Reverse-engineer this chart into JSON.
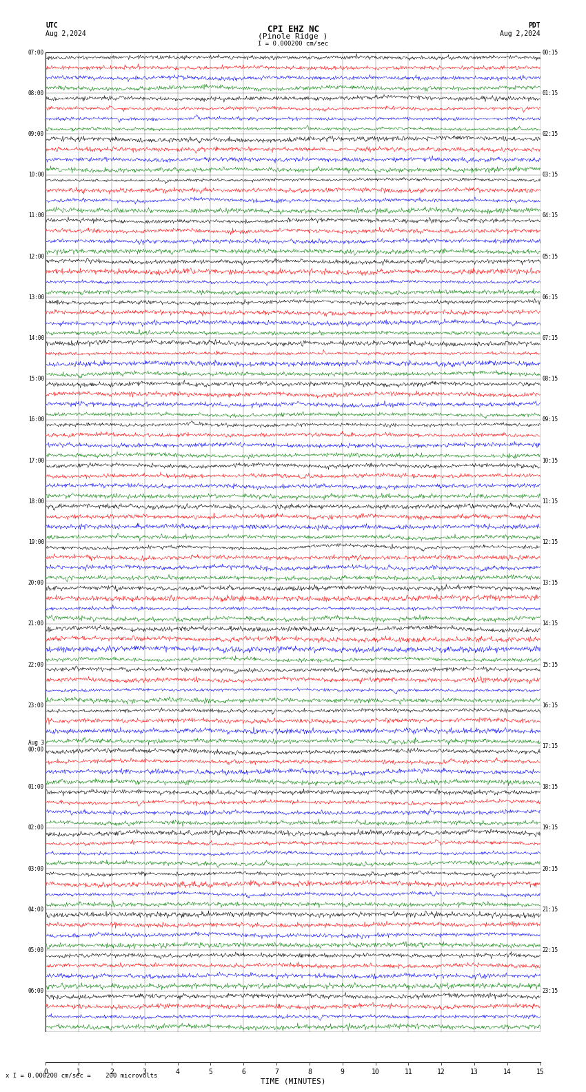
{
  "title_line1": "CPI EHZ NC",
  "title_line2": "(Pinole Ridge )",
  "scale_label": "I = 0.000200 cm/sec",
  "footer_label": "x I = 0.000200 cm/sec =    200 microvolts",
  "utc_label": "UTC",
  "utc_date": "Aug 2,2024",
  "pdt_label": "PDT",
  "pdt_date": "Aug 2,2024",
  "xlabel": "TIME (MINUTES)",
  "xticks": [
    0,
    1,
    2,
    3,
    4,
    5,
    6,
    7,
    8,
    9,
    10,
    11,
    12,
    13,
    14,
    15
  ],
  "left_times": [
    "07:00",
    "08:00",
    "09:00",
    "10:00",
    "11:00",
    "12:00",
    "13:00",
    "14:00",
    "15:00",
    "16:00",
    "17:00",
    "18:00",
    "19:00",
    "20:00",
    "21:00",
    "22:00",
    "23:00",
    "Aug 3\n00:00",
    "01:00",
    "02:00",
    "03:00",
    "04:00",
    "05:00",
    "06:00"
  ],
  "right_times": [
    "00:15",
    "01:15",
    "02:15",
    "03:15",
    "04:15",
    "05:15",
    "06:15",
    "07:15",
    "08:15",
    "09:15",
    "10:15",
    "11:15",
    "12:15",
    "13:15",
    "14:15",
    "15:15",
    "16:15",
    "17:15",
    "18:15",
    "19:15",
    "20:15",
    "21:15",
    "22:15",
    "23:15"
  ],
  "n_rows": 24,
  "traces_per_row": 4,
  "colors": [
    "black",
    "red",
    "blue",
    "green"
  ],
  "bg_color": "white",
  "trace_amplitude": 0.38,
  "noise_scale": [
    0.15,
    0.12,
    0.18,
    0.1
  ],
  "n_points": 900,
  "seed": 42,
  "fig_width": 8.5,
  "fig_height": 15.84,
  "dpi": 100
}
